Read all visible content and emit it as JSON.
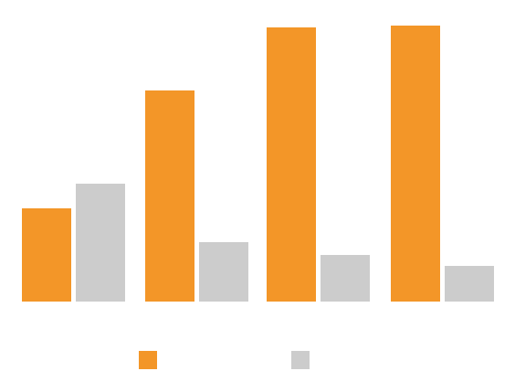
{
  "chart_data": {
    "type": "bar",
    "categories": [
      "",
      "",
      "",
      ""
    ],
    "series": [
      {
        "color": "#F39628",
        "values": [
          102,
          231,
          300,
          302
        ]
      },
      {
        "color": "#CCCCCC",
        "values": [
          129,
          65,
          51,
          39
        ]
      }
    ],
    "ylim": [
      0,
      310
    ],
    "grid": false,
    "legend_position": "bottom"
  }
}
